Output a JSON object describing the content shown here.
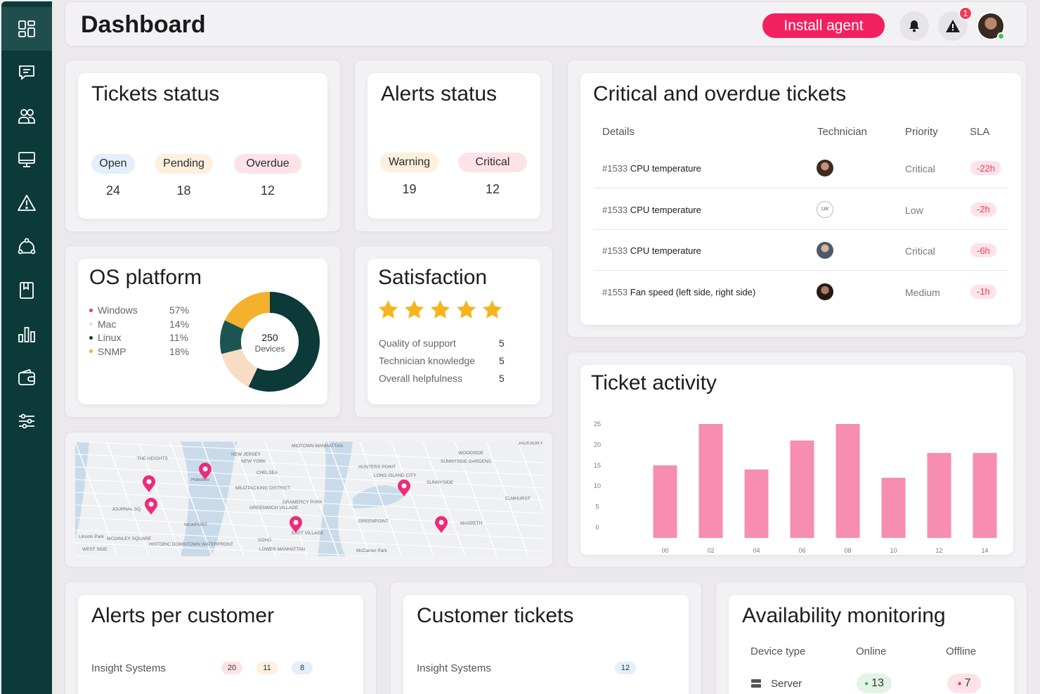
{
  "header": {
    "title": "Dashboard",
    "install_label": "Install agent",
    "alert_count": "1"
  },
  "sidebar": {
    "items": [
      "dashboard-icon",
      "chat-icon",
      "users-icon",
      "monitor-icon",
      "warning-icon",
      "network-icon",
      "book-icon",
      "chart-icon",
      "wallet-icon",
      "sliders-icon"
    ]
  },
  "tickets_status": {
    "title": "Tickets status",
    "items": [
      {
        "label": "Open",
        "count": "24",
        "color": "#e3f0fb"
      },
      {
        "label": "Pending",
        "count": "18",
        "color": "#fdf0dc"
      },
      {
        "label": "Overdue",
        "count": "12",
        "color": "#fde3e7"
      }
    ]
  },
  "alerts_status": {
    "title": "Alerts status",
    "items": [
      {
        "label": "Warning",
        "count": "19",
        "color": "#fdf0dc"
      },
      {
        "label": "Critical",
        "count": "12",
        "color": "#fde3e7"
      }
    ]
  },
  "critical_tickets": {
    "title": "Critical and overdue tickets",
    "columns": [
      "Details",
      "Technician",
      "Priority",
      "SLA"
    ],
    "rows": [
      {
        "id": "#1533",
        "name": "CPU temperature",
        "technician": "",
        "priority": "Critical",
        "sla": "-22h"
      },
      {
        "id": "#1533",
        "name": "CPU temperature",
        "technician": "LW",
        "priority": "Low",
        "sla": "-2h"
      },
      {
        "id": "#1533",
        "name": "CPU temperature",
        "technician": "",
        "priority": "Critical",
        "sla": "-6h"
      },
      {
        "id": "#1553",
        "name": "Fan speed (left side, right side)",
        "technician": "",
        "priority": "Medium",
        "sla": "-1h"
      }
    ]
  },
  "os_platform": {
    "title": "OS platform",
    "center_value": "250",
    "center_label": "Devices",
    "items": [
      {
        "label": "Windows",
        "value": "57%",
        "pct": 57,
        "color": "#0b3a39"
      },
      {
        "label": "Mac",
        "value": "14%",
        "pct": 14,
        "color": "#f9dcc4"
      },
      {
        "label": "Linux",
        "value": "11%",
        "pct": 11,
        "color": "#1c5452"
      },
      {
        "label": "SNMP",
        "value": "18%",
        "pct": 18,
        "color": "#f4b12e"
      }
    ],
    "bullet_colors": [
      "#ef3c57",
      "#f9dcc4",
      "#0b3a39",
      "#f4b12e"
    ]
  },
  "satisfaction": {
    "title": "Satisfaction",
    "rating": 5,
    "star_color": "#f6b51d",
    "rows": [
      {
        "label": "Quality of support",
        "value": "5"
      },
      {
        "label": "Technician knowledge",
        "value": "5"
      },
      {
        "label": "Overall helpfulness",
        "value": "5"
      }
    ]
  },
  "map": {
    "labels": [
      "THE HEIGHTS",
      "Hoboken",
      "JOURNAL SQ",
      "NEWPORT",
      "MCGINLEY SQUARE",
      "HISTORIC DOWNTOWN WATERFRONT",
      "WEST SIDE",
      "CHELSEA",
      "MEATPACKING DISTRICT",
      "GREENWICH VILLAGE",
      "SOHO",
      "LOWER MANHATTAN",
      "EAST VILLAGE",
      "GRAMERCY PARK",
      "MIDTOWN MANHATTAN",
      "NEW JERSEY",
      "NEW YORK",
      "HUNTERS POINT",
      "LONG ISLAND CITY",
      "SUNNYSIDE",
      "SUNNYSIDE GARDENS",
      "WOODSIDE",
      "JACKSON HEIGHTS",
      "ELMHURST",
      "MASPETH",
      "GREENPOINT",
      "McCarren Park",
      "Lincoln Park"
    ],
    "pin_color": "#ee2a7b"
  },
  "ticket_activity": {
    "title": "Ticket activity"
  },
  "chart_data": {
    "type": "bar",
    "categories": [
      "00",
      "02",
      "04",
      "06",
      "08",
      "10",
      "12",
      "14"
    ],
    "values": [
      15,
      25,
      14,
      21,
      25,
      12,
      18,
      18
    ],
    "ylim": [
      0,
      25
    ],
    "yticks": [
      "25",
      "20",
      "15",
      "10",
      "5",
      "0"
    ],
    "title": "Ticket activity",
    "bar_color": "#f78db0",
    "grid": false
  },
  "alerts_per_customer": {
    "title": "Alerts per customer",
    "rows": [
      {
        "name": "Insight Systems",
        "badges": [
          {
            "value": "20",
            "color": "#fde3e7"
          },
          {
            "value": "11",
            "color": "#fdf0dc"
          },
          {
            "value": "8",
            "color": "#e3f0fb"
          }
        ]
      }
    ]
  },
  "customer_tickets": {
    "title": "Customer tickets",
    "rows": [
      {
        "name": "Insight Systems",
        "count": "12"
      }
    ]
  },
  "availability": {
    "title": "Availability monitoring",
    "columns": [
      "Device type",
      "Online",
      "Offline"
    ],
    "rows": [
      {
        "type": "Server",
        "online": "13",
        "offline": "7"
      }
    ]
  }
}
